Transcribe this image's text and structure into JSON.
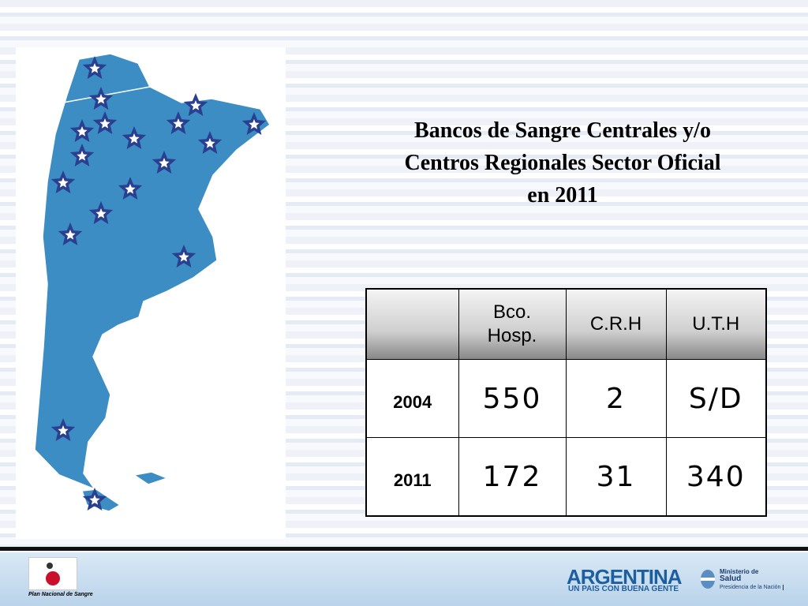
{
  "title": [
    "Bancos  de Sangre Centrales y/o",
    "Centros Regionales Sector Oficial",
    "en  2011"
  ],
  "table": {
    "header": [
      "Bco. Hosp.",
      "C.R.H",
      "U.T.H"
    ],
    "rows": [
      [
        "2004",
        "550",
        "2",
        "S/D"
      ],
      [
        "2011",
        "172",
        "31",
        "340"
      ]
    ]
  },
  "footer": {
    "logo_caption": "Plan Nacional de Sangre",
    "brand": "ARGENTINA",
    "slogan": "UN PAIS CON BUENA GENTE",
    "ministry": [
      "Ministerio de",
      "Salud"
    ],
    "presidency": "Presidencia de la Nación"
  }
}
